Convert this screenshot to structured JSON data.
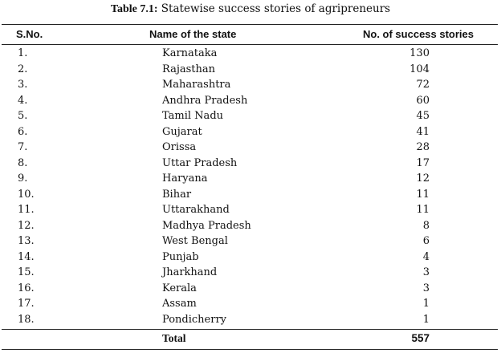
{
  "caption": {
    "label": "Table 7.1:",
    "text": " Statewise success stories of agripreneurs"
  },
  "table": {
    "headers": {
      "sno": "S.No.",
      "state": "Name of the state",
      "count": "No. of success stories"
    },
    "rows": [
      {
        "sno": "1.",
        "state": "Karnataka",
        "count": "130"
      },
      {
        "sno": "2.",
        "state": "Rajasthan",
        "count": "104"
      },
      {
        "sno": "3.",
        "state": "Maharashtra",
        "count": "72"
      },
      {
        "sno": "4.",
        "state": "Andhra Pradesh",
        "count": "60"
      },
      {
        "sno": "5.",
        "state": "Tamil Nadu",
        "count": "45"
      },
      {
        "sno": "6.",
        "state": "Gujarat",
        "count": "41"
      },
      {
        "sno": "7.",
        "state": "Orissa",
        "count": "28"
      },
      {
        "sno": "8.",
        "state": "Uttar Pradesh",
        "count": "17"
      },
      {
        "sno": "9.",
        "state": "Haryana",
        "count": "12"
      },
      {
        "sno": "10.",
        "state": "Bihar",
        "count": "11"
      },
      {
        "sno": "11.",
        "state": "Uttarakhand",
        "count": "11"
      },
      {
        "sno": "12.",
        "state": "Madhya Pradesh",
        "count": "8"
      },
      {
        "sno": "13.",
        "state": "West Bengal",
        "count": "6"
      },
      {
        "sno": "14.",
        "state": "Punjab",
        "count": "4"
      },
      {
        "sno": "15.",
        "state": "Jharkhand",
        "count": "3"
      },
      {
        "sno": "16.",
        "state": "Kerala",
        "count": "3"
      },
      {
        "sno": "17.",
        "state": "Assam",
        "count": "1"
      },
      {
        "sno": "18.",
        "state": "Pondicherry",
        "count": "1"
      }
    ],
    "total": {
      "label": "Total",
      "value": "557"
    }
  }
}
